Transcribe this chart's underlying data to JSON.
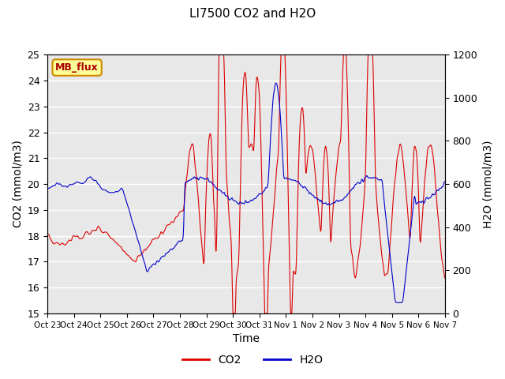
{
  "title": "LI7500 CO2 and H2O",
  "xlabel": "Time",
  "ylabel_left": "CO2 (mmol/m3)",
  "ylabel_right": "H2O (mmol/m3)",
  "co2_ylim": [
    15.0,
    25.0
  ],
  "h2o_ylim": [
    0,
    1200
  ],
  "co2_yticks": [
    15.0,
    16.0,
    17.0,
    18.0,
    19.0,
    20.0,
    21.0,
    22.0,
    23.0,
    24.0,
    25.0
  ],
  "h2o_yticks": [
    0,
    200,
    400,
    600,
    800,
    1000,
    1200
  ],
  "co2_color": "#dd0000",
  "h2o_color": "#0000cc",
  "bg_color": "#e8e8e8",
  "legend_label_co2": "CO2",
  "legend_label_h2o": "H2O",
  "annotation_text": "MB_flux",
  "annotation_bg": "#ffff99",
  "annotation_border": "#cc8800",
  "annotation_text_color": "#aa0000",
  "xtick_labels": [
    "Oct 23",
    "Oct 24",
    "Oct 25",
    "Oct 26",
    "Oct 27",
    "Oct 28",
    "Oct 29",
    "Oct 30",
    "Oct 31",
    "Nov 1",
    "Nov 2",
    "Nov 3",
    "Nov 4",
    "Nov 5",
    "Nov 6",
    "Nov 7"
  ],
  "num_points": 3360,
  "seed": 42
}
